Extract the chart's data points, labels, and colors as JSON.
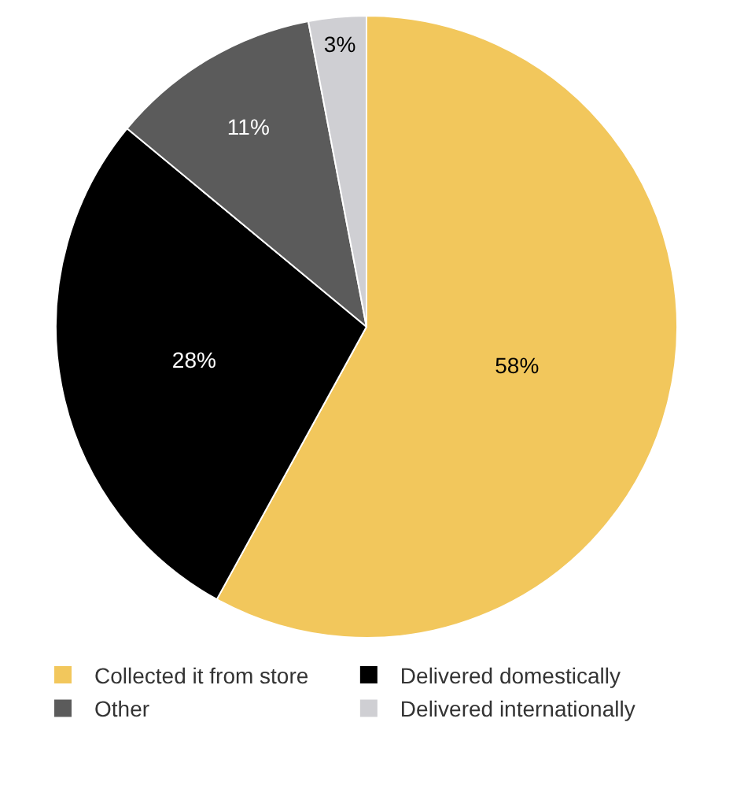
{
  "chart_data": {
    "type": "pie",
    "categories": [
      "Collected it from store",
      "Delivered domestically",
      "Other",
      "Delivered internationally"
    ],
    "values": [
      58,
      28,
      11,
      3
    ],
    "colors": [
      "#f2c75c",
      "#000000",
      "#5b5b5b",
      "#cfcfd3"
    ],
    "value_labels": [
      "58%",
      "28%",
      "11%",
      "3%"
    ],
    "legend": "bottom"
  }
}
